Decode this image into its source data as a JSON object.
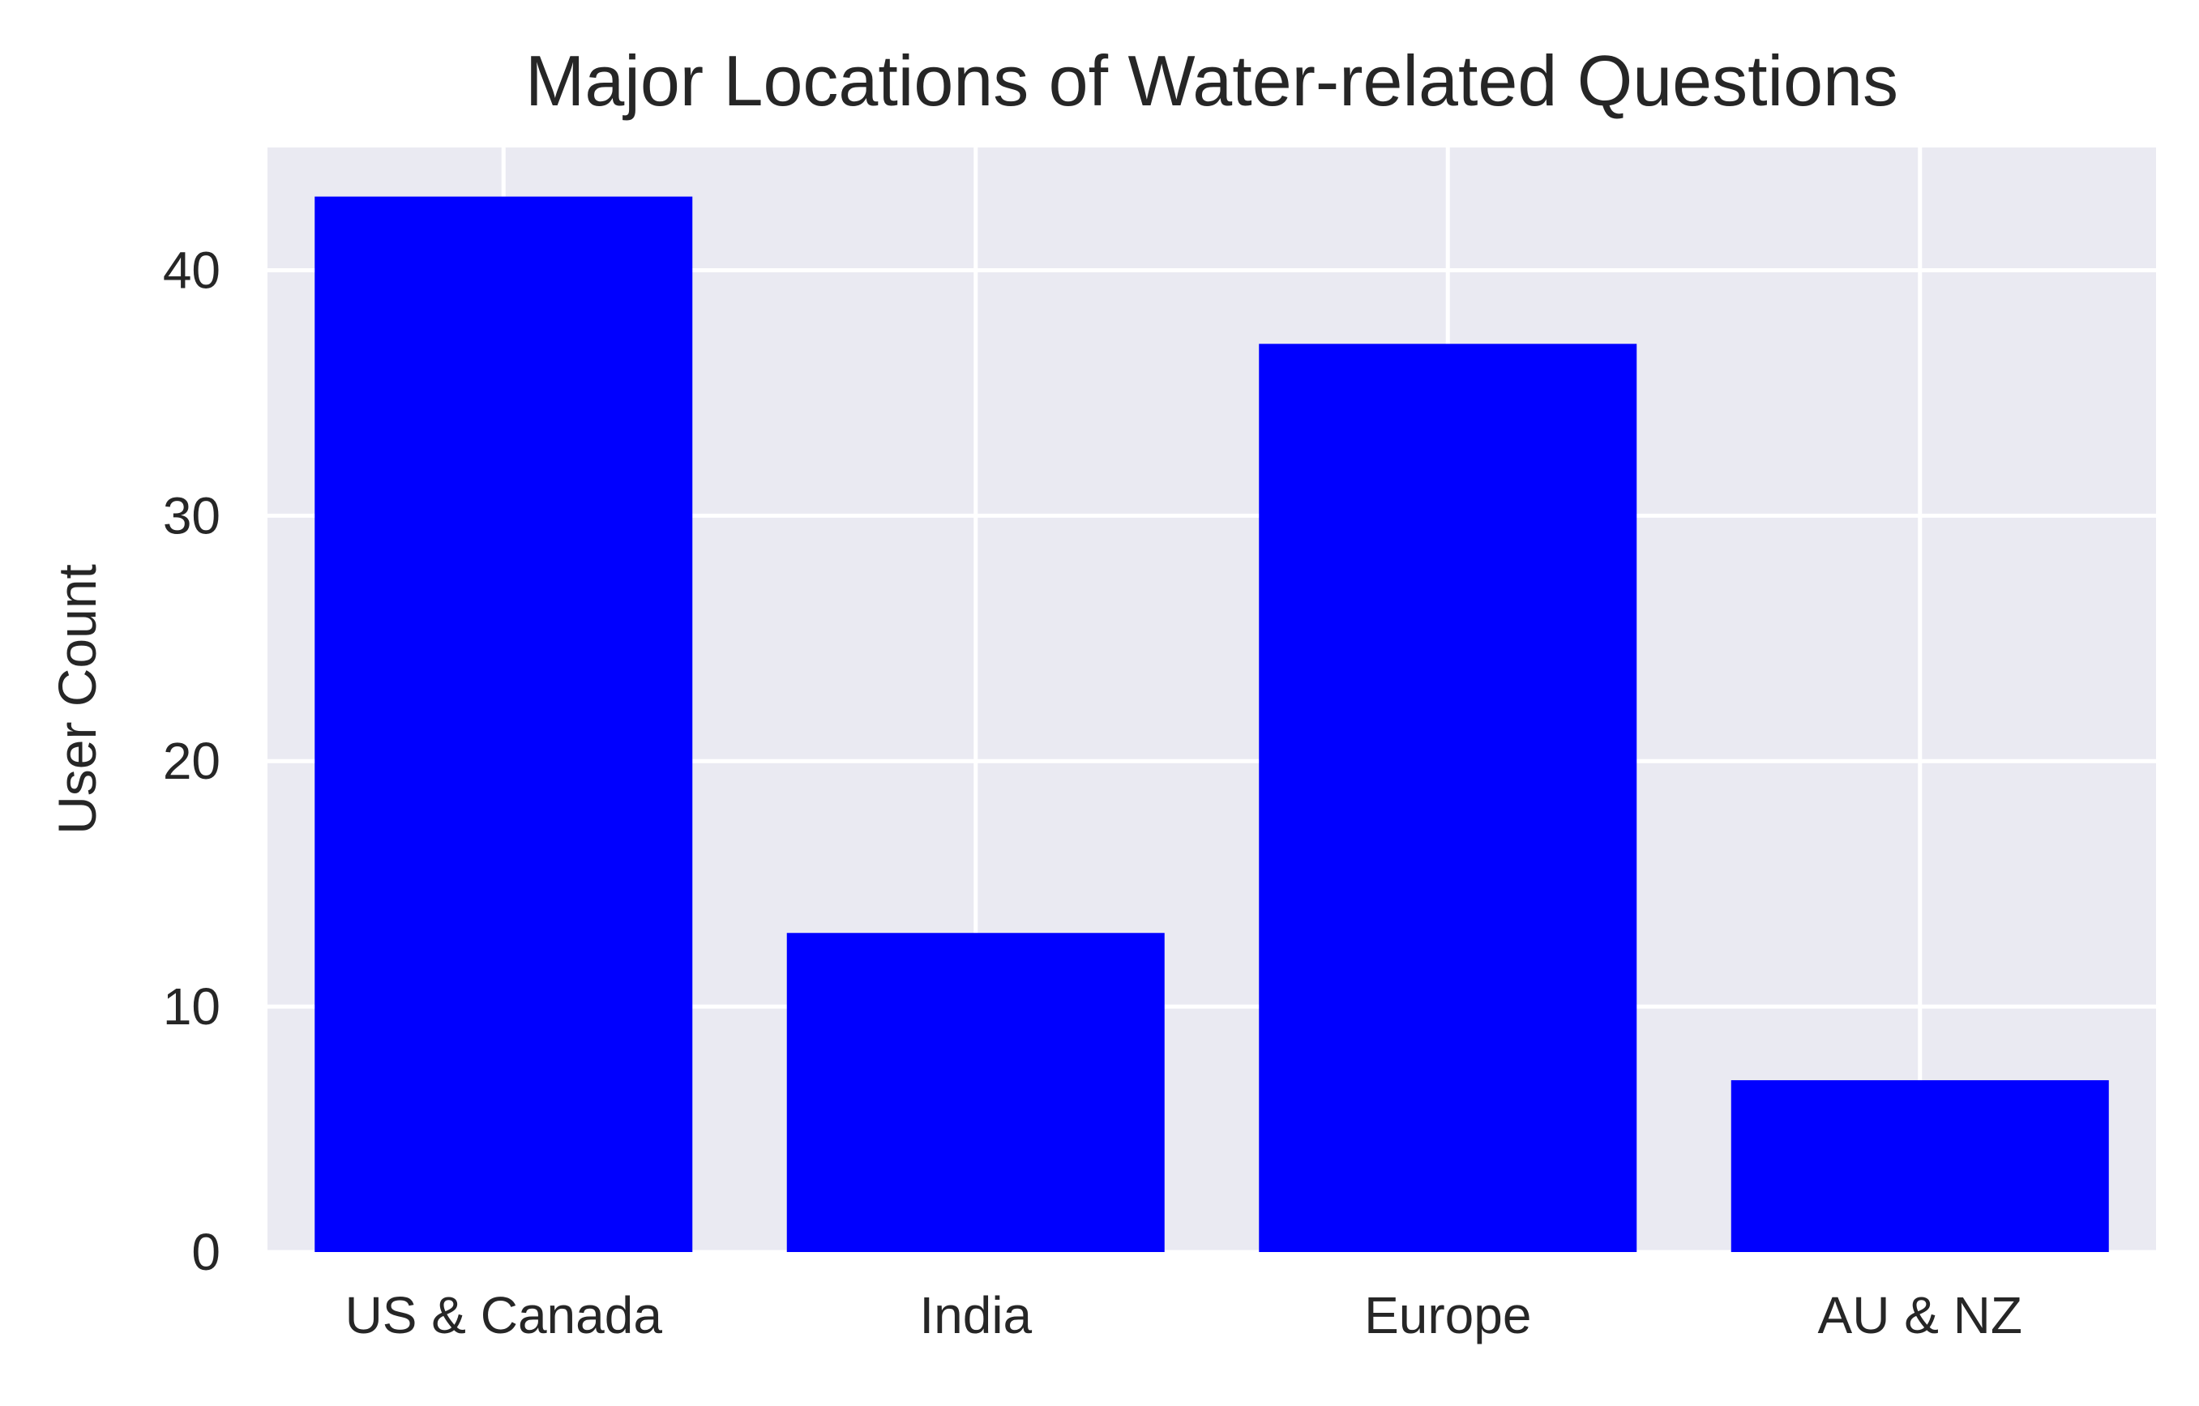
{
  "chart_data": {
    "type": "bar",
    "title": "Major Locations of Water-related Questions",
    "xlabel": "",
    "ylabel": "User Count",
    "categories": [
      "US & Canada",
      "India",
      "Europe",
      "AU & NZ"
    ],
    "values": [
      43,
      13,
      37,
      7
    ],
    "ylim": [
      0,
      45
    ],
    "yticks": [
      0,
      10,
      20,
      30,
      40
    ],
    "grid": true,
    "legend": "none",
    "colors": {
      "bar": "#0000ff",
      "plot_background": "#eaeaf2",
      "grid": "#ffffff",
      "text": "#262626"
    }
  }
}
